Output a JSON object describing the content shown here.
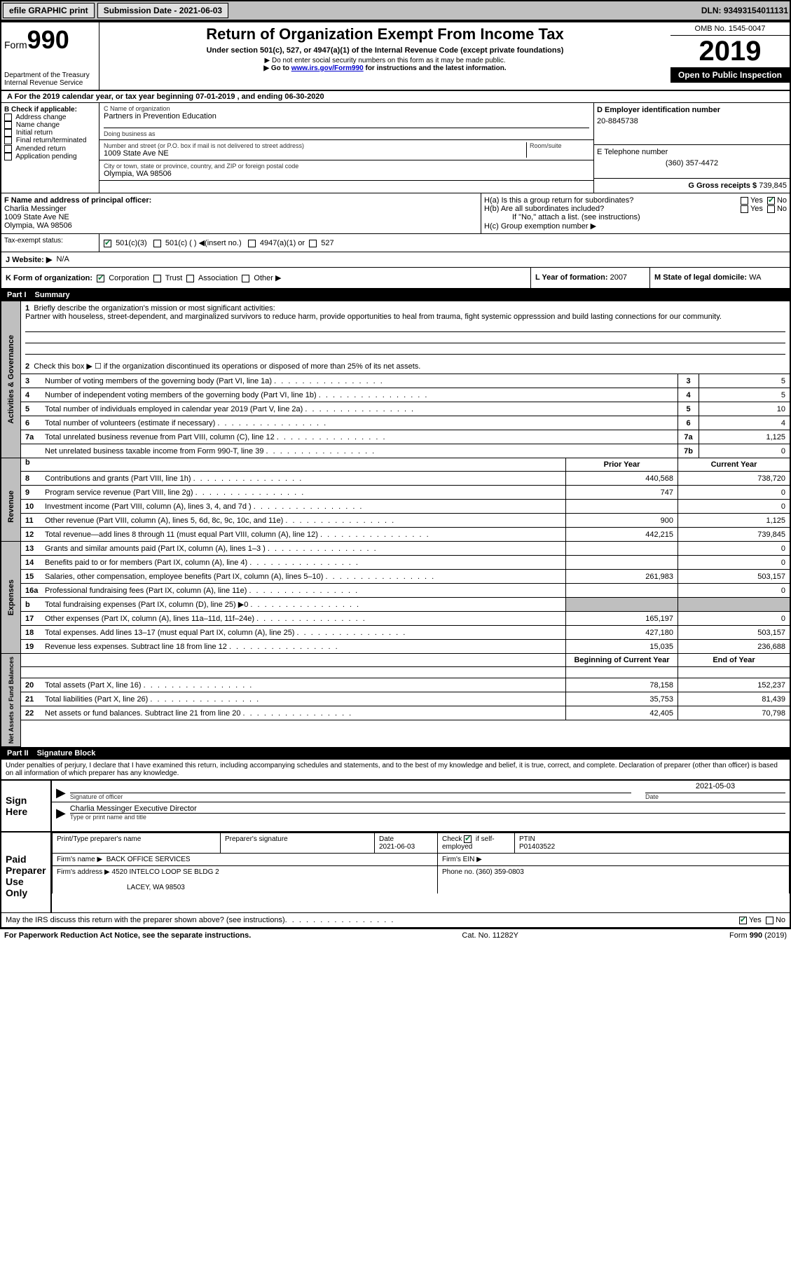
{
  "topbar": {
    "efile_label": "efile GRAPHIC print",
    "submission_label": "Submission Date - 2021-06-03",
    "dln_label": "DLN: 93493154011131"
  },
  "header": {
    "form_word": "Form",
    "form_num": "990",
    "dept": "Department of the Treasury",
    "irs": "Internal Revenue Service",
    "title": "Return of Organization Exempt From Income Tax",
    "subtitle": "Under section 501(c), 527, or 4947(a)(1) of the Internal Revenue Code (except private foundations)",
    "note1": "▶ Do not enter social security numbers on this form as it may be made public.",
    "note2_pre": "▶ Go to ",
    "note2_link": "www.irs.gov/Form990",
    "note2_post": " for instructions and the latest information.",
    "omb": "OMB No. 1545-0047",
    "year": "2019",
    "inspection": "Open to Public Inspection"
  },
  "period": "A For the 2019 calendar year, or tax year beginning 07-01-2019    , and ending 06-30-2020",
  "box_b": {
    "title": "B Check if applicable:",
    "items": [
      "Address change",
      "Name change",
      "Initial return",
      "Final return/terminated",
      "Amended return",
      "Application pending"
    ]
  },
  "box_c": {
    "name_label": "C Name of organization",
    "name": "Partners in Prevention Education",
    "dba_label": "Doing business as",
    "street_label": "Number and street (or P.O. box if mail is not delivered to street address)",
    "room_label": "Room/suite",
    "street": "1009 State Ave NE",
    "city_label": "City or town, state or province, country, and ZIP or foreign postal code",
    "city": "Olympia, WA  98506"
  },
  "box_d": {
    "label": "D Employer identification number",
    "value": "20-8845738"
  },
  "box_e": {
    "label": "E Telephone number",
    "value": "(360) 357-4472"
  },
  "box_g": {
    "label": "G Gross receipts $",
    "value": "739,845"
  },
  "box_f": {
    "label": "F  Name and address of principal officer:",
    "name": "Charlia Messinger",
    "street": "1009 State Ave NE",
    "city": "Olympia, WA  98506"
  },
  "box_h": {
    "a_label": "H(a)  Is this a group return for subordinates?",
    "b_label": "H(b)  Are all subordinates included?",
    "b_note": "If \"No,\" attach a list. (see instructions)",
    "c_label": "H(c)  Group exemption number ▶"
  },
  "tax_status": {
    "label": "Tax-exempt status:",
    "opt1": "501(c)(3)",
    "opt2": "501(c) (  ) ◀(insert no.)",
    "opt3": "4947(a)(1) or",
    "opt4": "527"
  },
  "website": {
    "label": "J   Website: ▶",
    "value": "N/A"
  },
  "box_k": {
    "label": "K Form of organization:",
    "opts": [
      "Corporation",
      "Trust",
      "Association",
      "Other ▶"
    ]
  },
  "box_l": {
    "label": "L Year of formation:",
    "value": "2007"
  },
  "box_m": {
    "label": "M State of legal domicile:",
    "value": "WA"
  },
  "part1": {
    "header": "Part I",
    "title": "Summary",
    "q1_label": "Briefly describe the organization's mission or most significant activities:",
    "q1_text": "Partner with houseless, street-dependent, and marginalized survivors to reduce harm, provide opportunities to heal from trauma, fight systemic oppresssion and build lasting connections for our community.",
    "q2": "Check this box ▶ ☐ if the organization discontinued its operations or disposed of more than 25% of its net assets.",
    "lines_gov": [
      {
        "n": "3",
        "t": "Number of voting members of the governing body (Part VI, line 1a)",
        "b": "3",
        "v": "5"
      },
      {
        "n": "4",
        "t": "Number of independent voting members of the governing body (Part VI, line 1b)",
        "b": "4",
        "v": "5"
      },
      {
        "n": "5",
        "t": "Total number of individuals employed in calendar year 2019 (Part V, line 2a)",
        "b": "5",
        "v": "10"
      },
      {
        "n": "6",
        "t": "Total number of volunteers (estimate if necessary)",
        "b": "6",
        "v": "4"
      },
      {
        "n": "7a",
        "t": "Total unrelated business revenue from Part VIII, column (C), line 12",
        "b": "7a",
        "v": "1,125"
      },
      {
        "n": "",
        "t": "Net unrelated business taxable income from Form 990-T, line 39",
        "b": "7b",
        "v": "0"
      }
    ],
    "col_prior": "Prior Year",
    "col_current": "Current Year",
    "lines_rev": [
      {
        "n": "8",
        "t": "Contributions and grants (Part VIII, line 1h)",
        "p": "440,568",
        "c": "738,720"
      },
      {
        "n": "9",
        "t": "Program service revenue (Part VIII, line 2g)",
        "p": "747",
        "c": "0"
      },
      {
        "n": "10",
        "t": "Investment income (Part VIII, column (A), lines 3, 4, and 7d )",
        "p": "",
        "c": "0"
      },
      {
        "n": "11",
        "t": "Other revenue (Part VIII, column (A), lines 5, 6d, 8c, 9c, 10c, and 11e)",
        "p": "900",
        "c": "1,125"
      },
      {
        "n": "12",
        "t": "Total revenue—add lines 8 through 11 (must equal Part VIII, column (A), line 12)",
        "p": "442,215",
        "c": "739,845"
      }
    ],
    "lines_exp": [
      {
        "n": "13",
        "t": "Grants and similar amounts paid (Part IX, column (A), lines 1–3 )",
        "p": "",
        "c": "0"
      },
      {
        "n": "14",
        "t": "Benefits paid to or for members (Part IX, column (A), line 4)",
        "p": "",
        "c": "0"
      },
      {
        "n": "15",
        "t": "Salaries, other compensation, employee benefits (Part IX, column (A), lines 5–10)",
        "p": "261,983",
        "c": "503,157"
      },
      {
        "n": "16a",
        "t": "Professional fundraising fees (Part IX, column (A), line 11e)",
        "p": "",
        "c": "0"
      },
      {
        "n": "b",
        "t": "Total fundraising expenses (Part IX, column (D), line 25) ▶0",
        "p": "SHADE",
        "c": "SHADE"
      },
      {
        "n": "17",
        "t": "Other expenses (Part IX, column (A), lines 11a–11d, 11f–24e)",
        "p": "165,197",
        "c": "0"
      },
      {
        "n": "18",
        "t": "Total expenses. Add lines 13–17 (must equal Part IX, column (A), line 25)",
        "p": "427,180",
        "c": "503,157"
      },
      {
        "n": "19",
        "t": "Revenue less expenses. Subtract line 18 from line 12",
        "p": "15,035",
        "c": "236,688"
      }
    ],
    "col_begin": "Beginning of Current Year",
    "col_end": "End of Year",
    "lines_net": [
      {
        "n": "20",
        "t": "Total assets (Part X, line 16)",
        "p": "78,158",
        "c": "152,237"
      },
      {
        "n": "21",
        "t": "Total liabilities (Part X, line 26)",
        "p": "35,753",
        "c": "81,439"
      },
      {
        "n": "22",
        "t": "Net assets or fund balances. Subtract line 21 from line 20",
        "p": "42,405",
        "c": "70,798"
      }
    ],
    "side_gov": "Activities & Governance",
    "side_rev": "Revenue",
    "side_exp": "Expenses",
    "side_net": "Net Assets or Fund Balances"
  },
  "part2": {
    "header": "Part II",
    "title": "Signature Block",
    "perjury": "Under penalties of perjury, I declare that I have examined this return, including accompanying schedules and statements, and to the best of my knowledge and belief, it is true, correct, and complete. Declaration of preparer (other than officer) is based on all information of which preparer has any knowledge.",
    "sign_here": "Sign Here",
    "sig_officer": "Signature of officer",
    "date_label": "Date",
    "date_val": "2021-05-03",
    "name_title": "Charlia Messinger  Executive Director",
    "type_label": "Type or print name and title",
    "paid": "Paid Preparer Use Only",
    "prep_name_label": "Print/Type preparer's name",
    "prep_sig_label": "Preparer's signature",
    "prep_date_label": "Date",
    "prep_date": "2021-06-03",
    "check_label": "Check ☑ if self-employed",
    "ptin_label": "PTIN",
    "ptin": "P01403522",
    "firm_name_label": "Firm's name     ▶",
    "firm_name": "BACK OFFICE SERVICES",
    "firm_ein_label": "Firm's EIN ▶",
    "firm_addr_label": "Firm's address ▶",
    "firm_addr1": "4520 INTELCO LOOP SE BLDG 2",
    "firm_addr2": "LACEY, WA  98503",
    "phone_label": "Phone no.",
    "phone": "(360) 359-0803",
    "discuss": "May the IRS discuss this return with the preparer shown above? (see instructions)",
    "yes": "Yes",
    "no": "No"
  },
  "footer": {
    "left": "For Paperwork Reduction Act Notice, see the separate instructions.",
    "center": "Cat. No. 11282Y",
    "right": "Form 990 (2019)"
  }
}
